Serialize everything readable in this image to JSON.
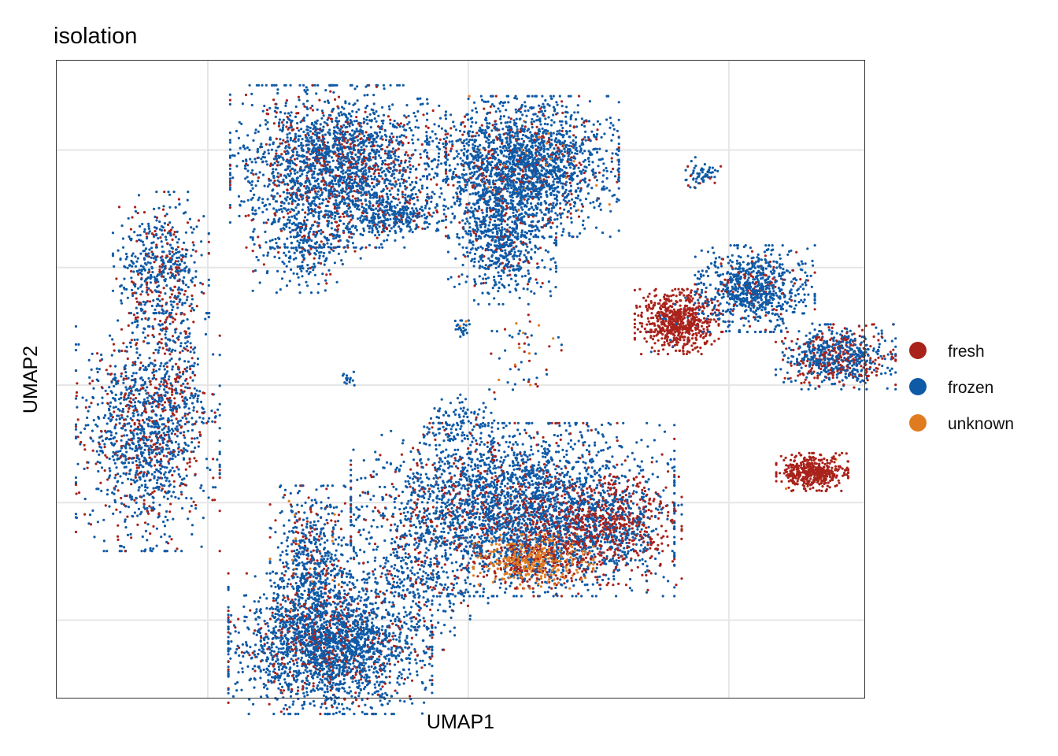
{
  "chart_data": {
    "type": "scatter",
    "title": "isolation",
    "xlabel": "UMAP1",
    "ylabel": "UMAP2",
    "xlim": [
      -15.8,
      15.2
    ],
    "ylim": [
      -13.3,
      13.8
    ],
    "grid": true,
    "tick_labels_shown": false,
    "legend_position": "right",
    "series": [
      {
        "name": "fresh",
        "color": "#A9221B"
      },
      {
        "name": "frozen",
        "color": "#0E5AA7"
      },
      {
        "name": "unknown",
        "color": "#E07B20"
      }
    ],
    "clusters": [
      {
        "x": -11.8,
        "y": 5.0,
        "sx": 0.8,
        "sy": 1.4,
        "n": 520,
        "mix": [
          0.25,
          0.75,
          0.0
        ]
      },
      {
        "x": -11.2,
        "y": 1.0,
        "sx": 0.4,
        "sy": 1.8,
        "n": 160,
        "mix": [
          0.45,
          0.55,
          0.0
        ]
      },
      {
        "x": -12.3,
        "y": -2.0,
        "sx": 1.2,
        "sy": 2.2,
        "n": 1300,
        "mix": [
          0.25,
          0.75,
          0.0
        ]
      },
      {
        "x": -5.0,
        "y": 9.3,
        "sx": 1.8,
        "sy": 1.5,
        "n": 2200,
        "mix": [
          0.2,
          0.8,
          0.0
        ]
      },
      {
        "x": -6.2,
        "y": 6.0,
        "sx": 0.9,
        "sy": 0.9,
        "n": 300,
        "mix": [
          0.15,
          0.85,
          0.0
        ]
      },
      {
        "x": -2.8,
        "y": 7.2,
        "sx": 0.7,
        "sy": 0.4,
        "n": 250,
        "mix": [
          0.1,
          0.9,
          0.0
        ]
      },
      {
        "x": 2.1,
        "y": 9.3,
        "sx": 1.6,
        "sy": 1.3,
        "n": 2100,
        "mix": [
          0.12,
          0.86,
          0.02
        ]
      },
      {
        "x": 1.3,
        "y": 6.2,
        "sx": 0.9,
        "sy": 1.2,
        "n": 700,
        "mix": [
          0.12,
          0.88,
          0.0
        ]
      },
      {
        "x": 9.0,
        "y": 9.0,
        "sx": 0.3,
        "sy": 0.3,
        "n": 60,
        "mix": [
          0.1,
          0.9,
          0.0
        ]
      },
      {
        "x": 8.0,
        "y": 2.7,
        "sx": 0.7,
        "sy": 0.6,
        "n": 650,
        "mix": [
          0.97,
          0.03,
          0.0
        ]
      },
      {
        "x": 11.0,
        "y": 4.1,
        "sx": 1.0,
        "sy": 0.8,
        "n": 800,
        "mix": [
          0.1,
          0.9,
          0.0
        ]
      },
      {
        "x": 14.1,
        "y": 1.2,
        "sx": 1.0,
        "sy": 0.6,
        "n": 700,
        "mix": [
          0.35,
          0.65,
          0.0
        ]
      },
      {
        "x": 13.2,
        "y": -3.7,
        "sx": 0.6,
        "sy": 0.35,
        "n": 450,
        "mix": [
          0.99,
          0.0,
          0.01
        ]
      },
      {
        "x": 1.7,
        "y": -5.3,
        "sx": 2.7,
        "sy": 1.6,
        "n": 3200,
        "mix": [
          0.18,
          0.82,
          0.0
        ]
      },
      {
        "x": 5.2,
        "y": -6.2,
        "sx": 1.3,
        "sy": 1.0,
        "n": 800,
        "mix": [
          0.65,
          0.35,
          0.0
        ]
      },
      {
        "x": 2.5,
        "y": -7.5,
        "sx": 1.0,
        "sy": 0.5,
        "n": 500,
        "mix": [
          0.25,
          0.1,
          0.65
        ]
      },
      {
        "x": -5.3,
        "y": -11.0,
        "sx": 1.7,
        "sy": 1.3,
        "n": 2300,
        "mix": [
          0.15,
          0.85,
          0.0
        ]
      },
      {
        "x": -6.0,
        "y": -7.5,
        "sx": 0.7,
        "sy": 1.4,
        "n": 600,
        "mix": [
          0.2,
          0.78,
          0.02
        ]
      },
      {
        "x": -2.0,
        "y": -8.5,
        "sx": 1.2,
        "sy": 1.2,
        "n": 300,
        "mix": [
          0.2,
          0.8,
          0.0
        ]
      },
      {
        "x": -0.3,
        "y": -1.8,
        "sx": 0.6,
        "sy": 0.7,
        "n": 120,
        "mix": [
          0.05,
          0.95,
          0.0
        ]
      },
      {
        "x": -0.3,
        "y": 2.4,
        "sx": 0.15,
        "sy": 0.15,
        "n": 25,
        "mix": [
          0.0,
          0.9,
          0.1
        ]
      },
      {
        "x": 2.2,
        "y": 1.3,
        "sx": 0.6,
        "sy": 1.0,
        "n": 50,
        "mix": [
          0.3,
          0.5,
          0.2
        ]
      },
      {
        "x": -4.6,
        "y": 0.3,
        "sx": 0.1,
        "sy": 0.15,
        "n": 15,
        "mix": [
          0.0,
          1.0,
          0.0
        ]
      }
    ]
  }
}
